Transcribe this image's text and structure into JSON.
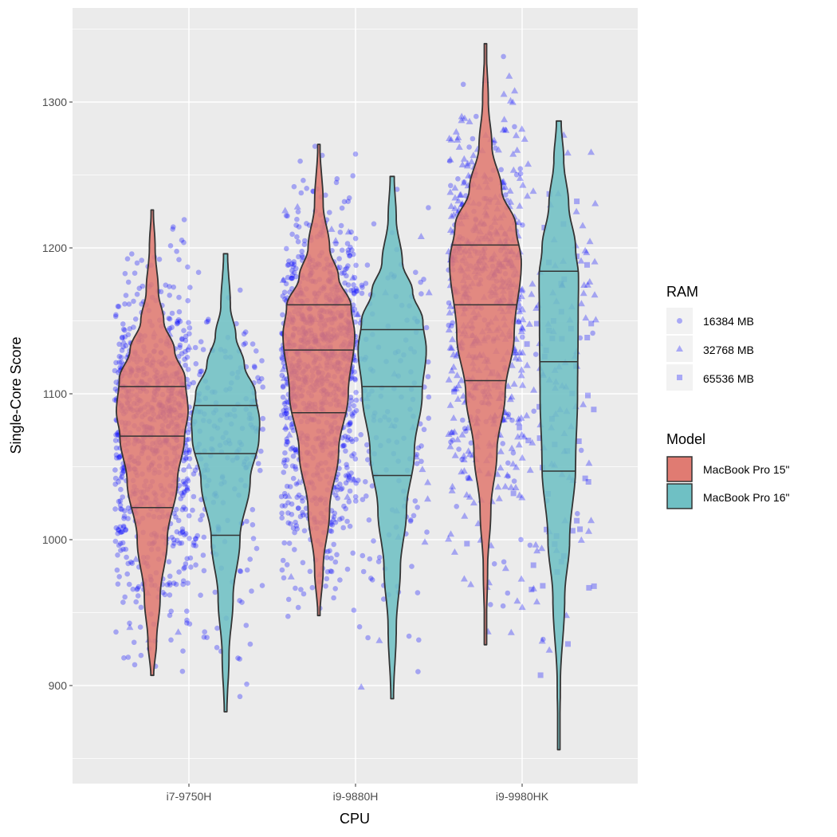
{
  "chart_data": {
    "type": "violin",
    "xlabel": "CPU",
    "ylabel": "Single-Core Score",
    "ylim": [
      833,
      1364
    ],
    "yticks": [
      900,
      1000,
      1100,
      1200,
      1300
    ],
    "ytick_labels": [
      "900",
      "1000",
      "1100",
      "1200",
      "1300"
    ],
    "categories": [
      "i7-9750H",
      "i9-9880H",
      "i9-9980HK"
    ],
    "grid": true,
    "colors": {
      "MacBook Pro 15\"": "#e07b72",
      "MacBook Pro 16\"": "#6fc0c4",
      "points": "#0000ff",
      "panel": "#ebebeb"
    },
    "legend": {
      "placement": "right",
      "ram": {
        "title": "RAM",
        "entries": [
          {
            "label": "16384 MB",
            "shape": "circle"
          },
          {
            "label": "32768 MB",
            "shape": "triangle"
          },
          {
            "label": "65536 MB",
            "shape": "square"
          }
        ]
      },
      "model": {
        "title": "Model",
        "entries": [
          {
            "label": "MacBook Pro 15\"",
            "color": "#e07b72"
          },
          {
            "label": "MacBook Pro 16\"",
            "color": "#6fc0c4"
          }
        ]
      }
    },
    "violins": [
      {
        "cpu": "i7-9750H",
        "model": "MacBook Pro 15\"",
        "min": 907,
        "max": 1226,
        "quantiles": [
          1022,
          1071,
          1105
        ],
        "scale": 1.0,
        "density": [
          [
            907,
            0.04
          ],
          [
            930,
            0.12
          ],
          [
            960,
            0.22
          ],
          [
            1000,
            0.42
          ],
          [
            1040,
            0.7
          ],
          [
            1070,
            0.9
          ],
          [
            1088,
            1.0
          ],
          [
            1110,
            0.92
          ],
          [
            1130,
            0.62
          ],
          [
            1150,
            0.32
          ],
          [
            1170,
            0.17
          ],
          [
            1200,
            0.08
          ],
          [
            1226,
            0.03
          ]
        ],
        "points": {
          "n": 800,
          "shapes": {
            "circle": 0.97,
            "triangle": 0.03,
            "square": 0
          }
        }
      },
      {
        "cpu": "i7-9750H",
        "model": "MacBook Pro 16\"",
        "min": 882,
        "max": 1196,
        "quantiles": [
          1003,
          1059,
          1092
        ],
        "scale": 0.95,
        "density": [
          [
            882,
            0.04
          ],
          [
            920,
            0.1
          ],
          [
            960,
            0.22
          ],
          [
            1000,
            0.42
          ],
          [
            1040,
            0.72
          ],
          [
            1070,
            0.98
          ],
          [
            1080,
            1.0
          ],
          [
            1100,
            0.88
          ],
          [
            1120,
            0.55
          ],
          [
            1140,
            0.3
          ],
          [
            1160,
            0.14
          ],
          [
            1196,
            0.06
          ]
        ],
        "points": {
          "n": 220,
          "shapes": {
            "circle": 1,
            "triangle": 0,
            "square": 0
          }
        }
      },
      {
        "cpu": "i9-9880H",
        "model": "MacBook Pro 15\"",
        "min": 948,
        "max": 1271,
        "quantiles": [
          1087,
          1130,
          1161
        ],
        "scale": 1.0,
        "density": [
          [
            948,
            0.03
          ],
          [
            980,
            0.12
          ],
          [
            1020,
            0.3
          ],
          [
            1060,
            0.55
          ],
          [
            1100,
            0.82
          ],
          [
            1140,
            1.0
          ],
          [
            1160,
            0.9
          ],
          [
            1180,
            0.55
          ],
          [
            1200,
            0.3
          ],
          [
            1230,
            0.12
          ],
          [
            1271,
            0.03
          ]
        ],
        "points": {
          "n": 1000,
          "shapes": {
            "circle": 0.96,
            "triangle": 0.04,
            "square": 0
          }
        }
      },
      {
        "cpu": "i9-9880H",
        "model": "MacBook Pro 16\"",
        "min": 891,
        "max": 1249,
        "quantiles": [
          1044,
          1105,
          1144
        ],
        "scale": 0.95,
        "density": [
          [
            891,
            0.04
          ],
          [
            940,
            0.12
          ],
          [
            980,
            0.24
          ],
          [
            1020,
            0.42
          ],
          [
            1060,
            0.65
          ],
          [
            1100,
            0.88
          ],
          [
            1130,
            1.0
          ],
          [
            1150,
            0.9
          ],
          [
            1170,
            0.6
          ],
          [
            1190,
            0.3
          ],
          [
            1220,
            0.12
          ],
          [
            1249,
            0.06
          ]
        ],
        "points": {
          "n": 170,
          "shapes": {
            "circle": 0.9,
            "triangle": 0.1,
            "square": 0
          }
        }
      },
      {
        "cpu": "i9-9980HK",
        "model": "MacBook Pro 15\"",
        "min": 928,
        "max": 1340,
        "quantiles": [
          1109,
          1161,
          1202
        ],
        "scale": 1.0,
        "density": [
          [
            928,
            0.01
          ],
          [
            980,
            0.06
          ],
          [
            1020,
            0.15
          ],
          [
            1060,
            0.32
          ],
          [
            1100,
            0.55
          ],
          [
            1140,
            0.8
          ],
          [
            1190,
            1.0
          ],
          [
            1215,
            0.85
          ],
          [
            1240,
            0.45
          ],
          [
            1270,
            0.18
          ],
          [
            1300,
            0.08
          ],
          [
            1340,
            0.02
          ]
        ],
        "points": {
          "n": 650,
          "shapes": {
            "circle": 0.25,
            "triangle": 0.73,
            "square": 0.02
          }
        }
      },
      {
        "cpu": "i9-9980HK",
        "model": "MacBook Pro 16\"",
        "min": 856,
        "max": 1287,
        "quantiles": [
          1047,
          1122,
          1184
        ],
        "scale": 0.55,
        "density": [
          [
            856,
            0.02
          ],
          [
            900,
            0.08
          ],
          [
            960,
            0.3
          ],
          [
            1000,
            0.55
          ],
          [
            1050,
            0.85
          ],
          [
            1100,
            0.95
          ],
          [
            1150,
            0.98
          ],
          [
            1180,
            1.0
          ],
          [
            1200,
            0.85
          ],
          [
            1230,
            0.5
          ],
          [
            1260,
            0.25
          ],
          [
            1287,
            0.12
          ]
        ],
        "points": {
          "n": 160,
          "shapes": {
            "circle": 0.05,
            "triangle": 0.65,
            "square": 0.3
          }
        }
      }
    ]
  }
}
